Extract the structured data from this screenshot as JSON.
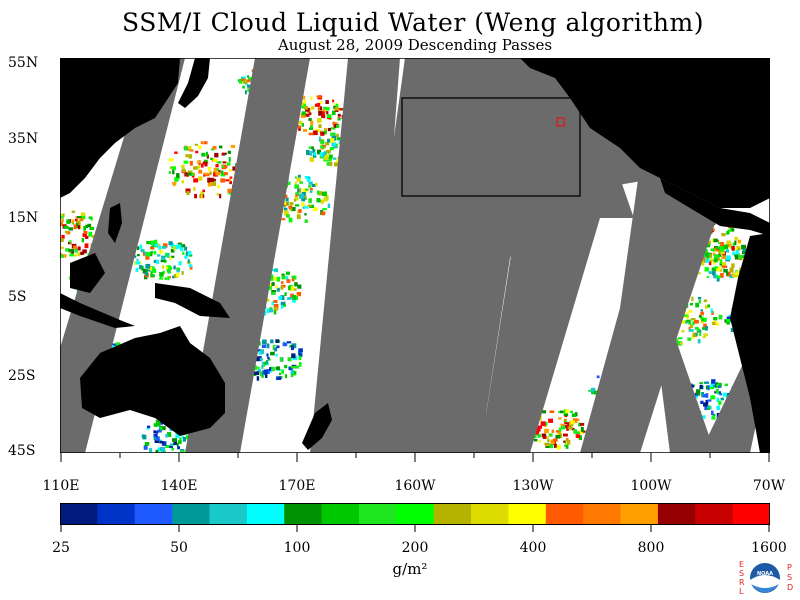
{
  "title": "SSM/I Cloud Liquid Water (Weng algorithm)",
  "subtitle": "August 28, 2009  Descending Passes",
  "map": {
    "lat_labels": [
      "55N",
      "35N",
      "15N",
      "5S",
      "25S",
      "45S"
    ],
    "lon_labels": [
      "110E",
      "140E",
      "170E",
      "160W",
      "130W",
      "100W",
      "70W"
    ],
    "colors": {
      "swath_gap": "#6b6b6b",
      "land": "#000000",
      "no_cloud": "#ffffff",
      "box_outline": "#000000"
    }
  },
  "colorbar": {
    "tick_labels": [
      "25",
      "50",
      "100",
      "200",
      "400",
      "800",
      "1600"
    ],
    "units": "g/m²",
    "colors": [
      "#001a80",
      "#0033c8",
      "#1e5aff",
      "#009999",
      "#19c8c8",
      "#00ffff",
      "#009100",
      "#00c800",
      "#1ee61e",
      "#00ff00",
      "#b4b400",
      "#dcdc00",
      "#ffff00",
      "#ff5a00",
      "#ff7800",
      "#ffa000",
      "#960000",
      "#c80000",
      "#ff0000"
    ]
  },
  "logo": {
    "left_letters": "ESRL",
    "right_letters": "PSD",
    "center_text": "NOAA"
  }
}
